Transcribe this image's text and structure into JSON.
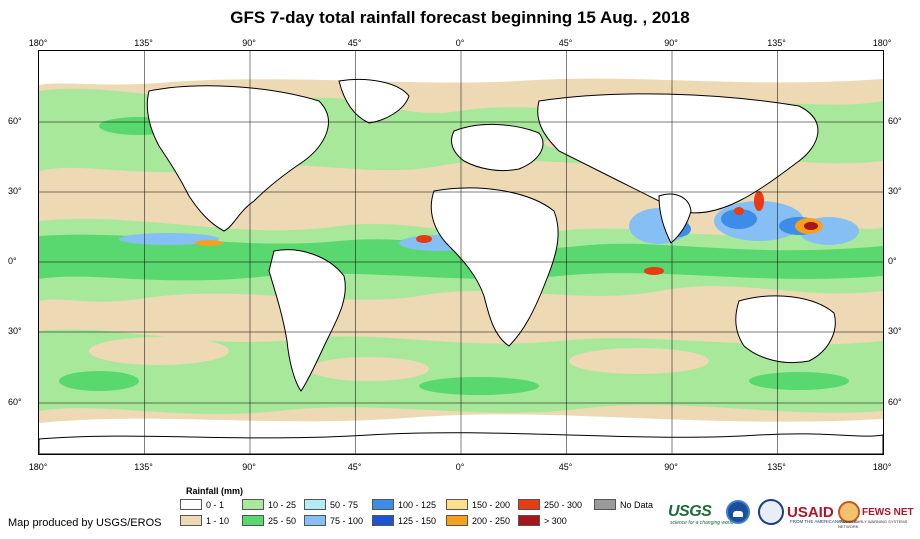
{
  "title": "GFS 7-day total rainfall forecast beginning 15 Aug. , 2018",
  "axes": {
    "lon_labels": [
      "180°",
      "135°",
      "90°",
      "45°",
      "0°",
      "45°",
      "90°",
      "135°",
      "180°"
    ],
    "lat_labels": [
      "60°",
      "30°",
      "0°",
      "30°",
      "60°"
    ]
  },
  "legend": {
    "title": "Rainfall (mm)",
    "items": [
      {
        "label": "0 - 1",
        "color": "#ffffff"
      },
      {
        "label": "1 - 10",
        "color": "#eed9b5"
      },
      {
        "label": "10 - 25",
        "color": "#a8e89a"
      },
      {
        "label": "25 - 50",
        "color": "#58d86e"
      },
      {
        "label": "50 - 75",
        "color": "#b4ecf5"
      },
      {
        "label": "75 - 100",
        "color": "#86bff3"
      },
      {
        "label": "100 - 125",
        "color": "#3d8ce8"
      },
      {
        "label": "125 - 150",
        "color": "#1d55d0"
      },
      {
        "label": "150 - 200",
        "color": "#fde08a"
      },
      {
        "label": "200 - 250",
        "color": "#f7a020"
      },
      {
        "label": "250 - 300",
        "color": "#e83b14"
      },
      {
        "label": "> 300",
        "color": "#a8151b"
      },
      {
        "label": "No Data",
        "color": "#9a9a9a"
      }
    ]
  },
  "credit": "Map produced by USGS/EROS",
  "logos": {
    "usgs": "USGS",
    "usgs_tagline": "science for a changing world",
    "noaa": "noaa-logo",
    "usaid": "USAID",
    "usaid_tagline": "FROM THE AMERICAN PEOPLE",
    "fews": "FEWS NET",
    "fews_tagline": "FAMINE EARLY WARNING SYSTEMS NETWORK"
  }
}
